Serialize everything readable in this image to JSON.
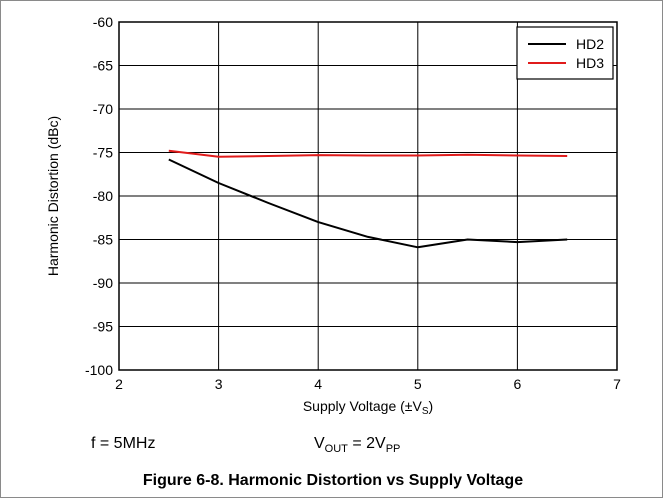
{
  "chart_data": {
    "type": "line",
    "title": "",
    "xlabel": "Supply Voltage (±V",
    "xlabel_sub": "S",
    "xlabel_end": ")",
    "ylabel": "Harmonic Distortion (dBc)",
    "xlim": [
      2,
      7
    ],
    "ylim": [
      -100,
      -60
    ],
    "x_ticks": [
      2,
      3,
      4,
      5,
      6,
      7
    ],
    "y_ticks": [
      -60,
      -65,
      -70,
      -75,
      -80,
      -85,
      -90,
      -95,
      -100
    ],
    "grid": true,
    "legend_position": "top-right",
    "series": [
      {
        "name": "HD2",
        "color": "#000000",
        "x": [
          2.5,
          3.0,
          3.5,
          4.0,
          4.5,
          5.0,
          5.5,
          6.0,
          6.5
        ],
        "y": [
          -75.8,
          -78.5,
          -80.8,
          -83.0,
          -84.7,
          -85.9,
          -85.0,
          -85.3,
          -85.0
        ]
      },
      {
        "name": "HD3",
        "color": "#e01b1b",
        "x": [
          2.5,
          3.0,
          3.5,
          4.0,
          4.5,
          5.0,
          5.5,
          6.0,
          6.5
        ],
        "y": [
          -74.8,
          -75.5,
          -75.4,
          -75.3,
          -75.35,
          -75.35,
          -75.25,
          -75.35,
          -75.4
        ]
      }
    ]
  },
  "conditions": {
    "freq": "f = 5MHz",
    "vout_prefix": "V",
    "vout_sub": "OUT",
    "vout_mid": " = 2V",
    "vout_sub2": "PP"
  },
  "caption": "Figure 6-8. Harmonic Distortion vs Supply Voltage"
}
